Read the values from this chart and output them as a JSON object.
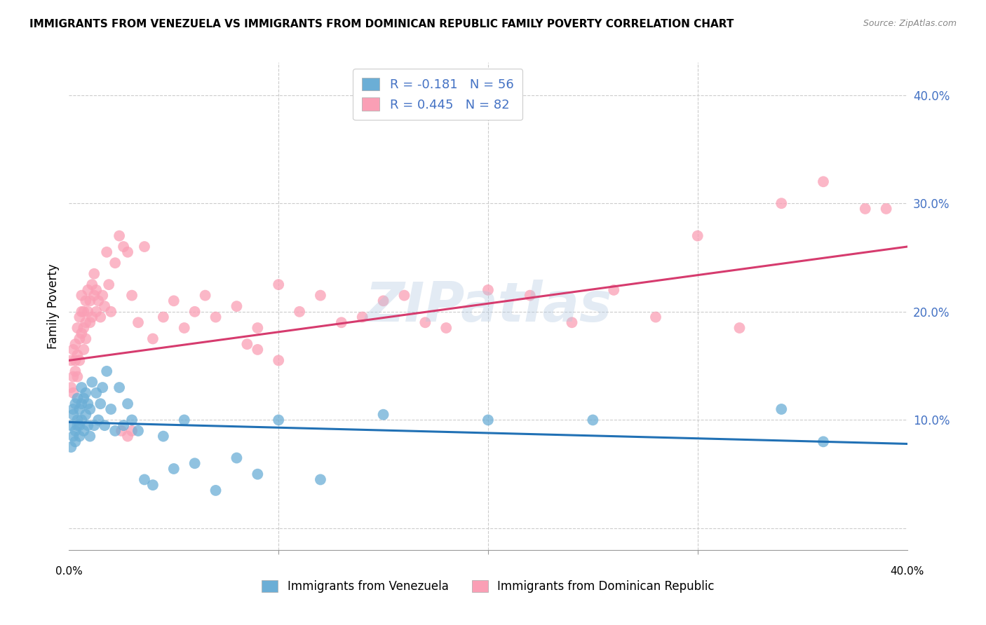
{
  "title": "IMMIGRANTS FROM VENEZUELA VS IMMIGRANTS FROM DOMINICAN REPUBLIC FAMILY POVERTY CORRELATION CHART",
  "source": "Source: ZipAtlas.com",
  "ylabel": "Family Poverty",
  "xlim": [
    0.0,
    0.4
  ],
  "ylim": [
    -0.02,
    0.43
  ],
  "legend_R_venezuela": "R = -0.181",
  "legend_N_venezuela": "N = 56",
  "legend_R_dominican": "R = 0.445",
  "legend_N_dominican": "N = 82",
  "color_venezuela": "#6baed6",
  "color_dominican": "#fa9fb5",
  "color_venezuela_line": "#2171b5",
  "color_dominican_line": "#d63b6e",
  "watermark": "ZIPatlas",
  "ven_line_x0": 0.0,
  "ven_line_y0": 0.098,
  "ven_line_x1": 0.4,
  "ven_line_y1": 0.078,
  "dom_line_x0": 0.0,
  "dom_line_y0": 0.155,
  "dom_line_x1": 0.4,
  "dom_line_y1": 0.26,
  "venezuela_x": [
    0.001,
    0.001,
    0.002,
    0.002,
    0.002,
    0.003,
    0.003,
    0.003,
    0.004,
    0.004,
    0.004,
    0.005,
    0.005,
    0.005,
    0.006,
    0.006,
    0.006,
    0.007,
    0.007,
    0.008,
    0.008,
    0.009,
    0.009,
    0.01,
    0.01,
    0.011,
    0.012,
    0.013,
    0.014,
    0.015,
    0.016,
    0.017,
    0.018,
    0.02,
    0.022,
    0.024,
    0.026,
    0.028,
    0.03,
    0.033,
    0.036,
    0.04,
    0.045,
    0.05,
    0.055,
    0.06,
    0.07,
    0.08,
    0.09,
    0.1,
    0.12,
    0.15,
    0.2,
    0.25,
    0.34,
    0.36
  ],
  "venezuela_y": [
    0.095,
    0.075,
    0.11,
    0.085,
    0.105,
    0.09,
    0.115,
    0.08,
    0.1,
    0.095,
    0.12,
    0.085,
    0.11,
    0.095,
    0.13,
    0.1,
    0.115,
    0.09,
    0.12,
    0.105,
    0.125,
    0.095,
    0.115,
    0.085,
    0.11,
    0.135,
    0.095,
    0.125,
    0.1,
    0.115,
    0.13,
    0.095,
    0.145,
    0.11,
    0.09,
    0.13,
    0.095,
    0.115,
    0.1,
    0.09,
    0.045,
    0.04,
    0.085,
    0.055,
    0.1,
    0.06,
    0.035,
    0.065,
    0.05,
    0.1,
    0.045,
    0.105,
    0.1,
    0.1,
    0.11,
    0.08
  ],
  "dominican_x": [
    0.001,
    0.001,
    0.002,
    0.002,
    0.002,
    0.003,
    0.003,
    0.003,
    0.004,
    0.004,
    0.004,
    0.005,
    0.005,
    0.005,
    0.006,
    0.006,
    0.006,
    0.007,
    0.007,
    0.007,
    0.008,
    0.008,
    0.008,
    0.009,
    0.009,
    0.01,
    0.01,
    0.011,
    0.011,
    0.012,
    0.012,
    0.013,
    0.013,
    0.014,
    0.015,
    0.016,
    0.017,
    0.018,
    0.019,
    0.02,
    0.022,
    0.024,
    0.026,
    0.028,
    0.03,
    0.033,
    0.036,
    0.04,
    0.045,
    0.05,
    0.055,
    0.06,
    0.065,
    0.07,
    0.08,
    0.09,
    0.1,
    0.11,
    0.12,
    0.13,
    0.14,
    0.15,
    0.16,
    0.17,
    0.18,
    0.2,
    0.22,
    0.24,
    0.26,
    0.28,
    0.3,
    0.32,
    0.34,
    0.36,
    0.38,
    0.39,
    0.03,
    0.025,
    0.028,
    0.09,
    0.1,
    0.085
  ],
  "dominican_y": [
    0.13,
    0.155,
    0.14,
    0.165,
    0.125,
    0.145,
    0.17,
    0.155,
    0.14,
    0.185,
    0.16,
    0.175,
    0.195,
    0.155,
    0.2,
    0.18,
    0.215,
    0.185,
    0.2,
    0.165,
    0.19,
    0.21,
    0.175,
    0.2,
    0.22,
    0.19,
    0.21,
    0.225,
    0.195,
    0.215,
    0.235,
    0.2,
    0.22,
    0.21,
    0.195,
    0.215,
    0.205,
    0.255,
    0.225,
    0.2,
    0.245,
    0.27,
    0.26,
    0.255,
    0.215,
    0.19,
    0.26,
    0.175,
    0.195,
    0.21,
    0.185,
    0.2,
    0.215,
    0.195,
    0.205,
    0.185,
    0.225,
    0.2,
    0.215,
    0.19,
    0.195,
    0.21,
    0.215,
    0.19,
    0.185,
    0.22,
    0.215,
    0.19,
    0.22,
    0.195,
    0.27,
    0.185,
    0.3,
    0.32,
    0.295,
    0.295,
    0.09,
    0.09,
    0.085,
    0.165,
    0.155,
    0.17
  ]
}
